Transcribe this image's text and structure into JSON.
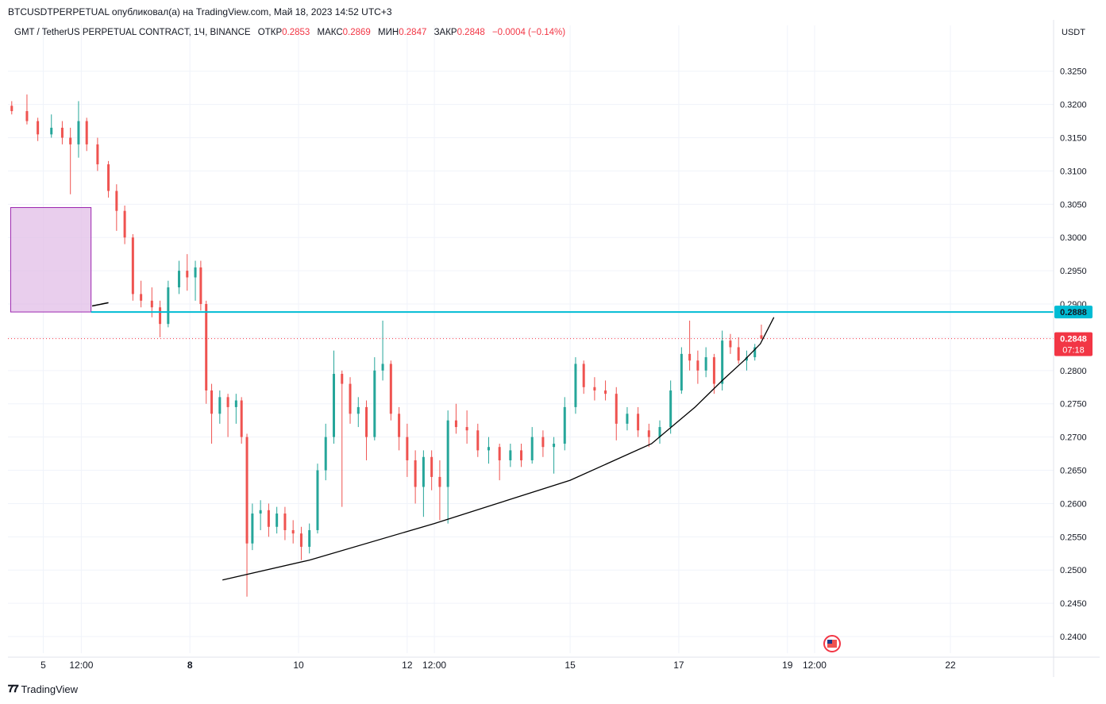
{
  "caption": "BTCUSDTPERPETUAL опубликовал(а) на TradingView.com, Май 18, 2023 14:52 UTC+3",
  "legend": {
    "symbol": "GMT / TetherUS PERPETUAL CONTRACT, 1Ч, BINANCE",
    "open_label": "ОТКР",
    "open": "0.2853",
    "high_label": "МАКС",
    "high": "0.2869",
    "low_label": "МИН",
    "low": "0.2847",
    "close_label": "ЗАКР",
    "close": "0.2848",
    "change": "−0.0004 (−0.14%)"
  },
  "footer": {
    "brand": "TradingView"
  },
  "colors": {
    "up": "#26a69a",
    "down": "#ef5350",
    "resistance": "#00bcd4",
    "zone_fill": "#e1bee7",
    "zone_border": "#9c27b0",
    "price_tag": "#f23645"
  },
  "chart_data": {
    "type": "candlestick",
    "currency": "USDT",
    "ylim": [
      0.2375,
      0.3295
    ],
    "y_ticks": [
      "0.3250",
      "0.3200",
      "0.3150",
      "0.3100",
      "0.3050",
      "0.3000",
      "0.2950",
      "0.2900",
      "0.2850",
      "0.2800",
      "0.2750",
      "0.2700",
      "0.2650",
      "0.2600",
      "0.2550",
      "0.2500",
      "0.2450",
      "0.2400"
    ],
    "x_ticks": [
      {
        "label": "5",
        "t": 0.3
      },
      {
        "label": "12:00",
        "t": 1.0
      },
      {
        "label": "8",
        "t": 3.0
      },
      {
        "label": "10",
        "t": 5.0
      },
      {
        "label": "12",
        "t": 7.0
      },
      {
        "label": "12:00",
        "t": 7.5
      },
      {
        "label": "15",
        "t": 10.0
      },
      {
        "label": "17",
        "t": 12.0
      },
      {
        "label": "19",
        "t": 14.0
      },
      {
        "label": "12:00",
        "t": 14.5
      },
      {
        "label": "22",
        "t": 17.0
      }
    ],
    "x_bold": [
      "8"
    ],
    "grid": true,
    "resistance_level": "0.2888",
    "current_price": "0.2848",
    "countdown": "07:18",
    "supply_zone": {
      "t_start": -0.3,
      "t_end": 1.18,
      "low": 0.2888,
      "high": 0.3045
    },
    "candles": [
      {
        "t": -0.28,
        "o": 0.3198,
        "h": 0.3205,
        "l": 0.3185,
        "c": 0.319
      },
      {
        "t": 0.0,
        "o": 0.319,
        "h": 0.3215,
        "l": 0.317,
        "c": 0.3175
      },
      {
        "t": 0.2,
        "o": 0.3175,
        "h": 0.318,
        "l": 0.3145,
        "c": 0.3155
      },
      {
        "t": 0.45,
        "o": 0.3155,
        "h": 0.3185,
        "l": 0.315,
        "c": 0.3165
      },
      {
        "t": 0.65,
        "o": 0.3165,
        "h": 0.3175,
        "l": 0.314,
        "c": 0.315
      },
      {
        "t": 0.8,
        "o": 0.315,
        "h": 0.3165,
        "l": 0.3065,
        "c": 0.314
      },
      {
        "t": 0.95,
        "o": 0.314,
        "h": 0.3205,
        "l": 0.312,
        "c": 0.3175
      },
      {
        "t": 1.1,
        "o": 0.3175,
        "h": 0.318,
        "l": 0.313,
        "c": 0.314
      },
      {
        "t": 1.3,
        "o": 0.314,
        "h": 0.315,
        "l": 0.31,
        "c": 0.311
      },
      {
        "t": 1.5,
        "o": 0.311,
        "h": 0.3115,
        "l": 0.306,
        "c": 0.307
      },
      {
        "t": 1.65,
        "o": 0.307,
        "h": 0.308,
        "l": 0.301,
        "c": 0.304
      },
      {
        "t": 1.8,
        "o": 0.304,
        "h": 0.3048,
        "l": 0.299,
        "c": 0.3
      },
      {
        "t": 1.95,
        "o": 0.3,
        "h": 0.3005,
        "l": 0.2905,
        "c": 0.2915
      },
      {
        "t": 2.1,
        "o": 0.2915,
        "h": 0.2935,
        "l": 0.2895,
        "c": 0.2905
      },
      {
        "t": 2.3,
        "o": 0.2905,
        "h": 0.2925,
        "l": 0.288,
        "c": 0.2895
      },
      {
        "t": 2.45,
        "o": 0.2895,
        "h": 0.2905,
        "l": 0.285,
        "c": 0.287
      },
      {
        "t": 2.6,
        "o": 0.287,
        "h": 0.2935,
        "l": 0.2865,
        "c": 0.2925
      },
      {
        "t": 2.8,
        "o": 0.2925,
        "h": 0.2965,
        "l": 0.2915,
        "c": 0.295
      },
      {
        "t": 2.95,
        "o": 0.295,
        "h": 0.2975,
        "l": 0.292,
        "c": 0.294
      },
      {
        "t": 3.1,
        "o": 0.294,
        "h": 0.2965,
        "l": 0.2905,
        "c": 0.2955
      },
      {
        "t": 3.2,
        "o": 0.2955,
        "h": 0.2965,
        "l": 0.289,
        "c": 0.29
      },
      {
        "t": 3.3,
        "o": 0.29,
        "h": 0.2905,
        "l": 0.275,
        "c": 0.277
      },
      {
        "t": 3.4,
        "o": 0.277,
        "h": 0.278,
        "l": 0.269,
        "c": 0.2735
      },
      {
        "t": 3.55,
        "o": 0.2735,
        "h": 0.277,
        "l": 0.272,
        "c": 0.276
      },
      {
        "t": 3.7,
        "o": 0.276,
        "h": 0.2765,
        "l": 0.27,
        "c": 0.2745
      },
      {
        "t": 3.85,
        "o": 0.2745,
        "h": 0.2765,
        "l": 0.272,
        "c": 0.2755
      },
      {
        "t": 3.95,
        "o": 0.2755,
        "h": 0.276,
        "l": 0.269,
        "c": 0.27
      },
      {
        "t": 4.05,
        "o": 0.27,
        "h": 0.2705,
        "l": 0.246,
        "c": 0.254
      },
      {
        "t": 4.15,
        "o": 0.254,
        "h": 0.26,
        "l": 0.253,
        "c": 0.2585
      },
      {
        "t": 4.3,
        "o": 0.2585,
        "h": 0.2605,
        "l": 0.256,
        "c": 0.259
      },
      {
        "t": 4.45,
        "o": 0.259,
        "h": 0.26,
        "l": 0.255,
        "c": 0.2565
      },
      {
        "t": 4.6,
        "o": 0.2565,
        "h": 0.2595,
        "l": 0.2555,
        "c": 0.2585
      },
      {
        "t": 4.75,
        "o": 0.2585,
        "h": 0.2595,
        "l": 0.2545,
        "c": 0.256
      },
      {
        "t": 4.9,
        "o": 0.256,
        "h": 0.2575,
        "l": 0.254,
        "c": 0.2555
      },
      {
        "t": 5.05,
        "o": 0.2555,
        "h": 0.2565,
        "l": 0.2515,
        "c": 0.2535
      },
      {
        "t": 5.2,
        "o": 0.2535,
        "h": 0.257,
        "l": 0.2525,
        "c": 0.256
      },
      {
        "t": 5.35,
        "o": 0.256,
        "h": 0.266,
        "l": 0.2555,
        "c": 0.265
      },
      {
        "t": 5.5,
        "o": 0.265,
        "h": 0.272,
        "l": 0.2635,
        "c": 0.27
      },
      {
        "t": 5.65,
        "o": 0.27,
        "h": 0.283,
        "l": 0.269,
        "c": 0.2795
      },
      {
        "t": 5.8,
        "o": 0.2795,
        "h": 0.28,
        "l": 0.2595,
        "c": 0.278
      },
      {
        "t": 5.95,
        "o": 0.278,
        "h": 0.279,
        "l": 0.272,
        "c": 0.2735
      },
      {
        "t": 6.1,
        "o": 0.2735,
        "h": 0.276,
        "l": 0.2715,
        "c": 0.2745
      },
      {
        "t": 6.25,
        "o": 0.2745,
        "h": 0.2755,
        "l": 0.2665,
        "c": 0.27
      },
      {
        "t": 6.4,
        "o": 0.27,
        "h": 0.282,
        "l": 0.2695,
        "c": 0.28
      },
      {
        "t": 6.55,
        "o": 0.28,
        "h": 0.2875,
        "l": 0.2785,
        "c": 0.281
      },
      {
        "t": 6.7,
        "o": 0.281,
        "h": 0.2815,
        "l": 0.2725,
        "c": 0.2735
      },
      {
        "t": 6.85,
        "o": 0.2735,
        "h": 0.2745,
        "l": 0.268,
        "c": 0.27
      },
      {
        "t": 7.0,
        "o": 0.27,
        "h": 0.272,
        "l": 0.264,
        "c": 0.2665
      },
      {
        "t": 7.15,
        "o": 0.2665,
        "h": 0.268,
        "l": 0.26,
        "c": 0.2625
      },
      {
        "t": 7.3,
        "o": 0.2625,
        "h": 0.268,
        "l": 0.258,
        "c": 0.267
      },
      {
        "t": 7.45,
        "o": 0.267,
        "h": 0.268,
        "l": 0.262,
        "c": 0.264
      },
      {
        "t": 7.6,
        "o": 0.264,
        "h": 0.2665,
        "l": 0.2575,
        "c": 0.2625
      },
      {
        "t": 7.75,
        "o": 0.2625,
        "h": 0.274,
        "l": 0.257,
        "c": 0.2725
      },
      {
        "t": 7.9,
        "o": 0.2725,
        "h": 0.275,
        "l": 0.2705,
        "c": 0.2715
      },
      {
        "t": 8.1,
        "o": 0.2715,
        "h": 0.274,
        "l": 0.269,
        "c": 0.271
      },
      {
        "t": 8.3,
        "o": 0.271,
        "h": 0.272,
        "l": 0.267,
        "c": 0.268
      },
      {
        "t": 8.5,
        "o": 0.268,
        "h": 0.27,
        "l": 0.266,
        "c": 0.2685
      },
      {
        "t": 8.7,
        "o": 0.2685,
        "h": 0.269,
        "l": 0.2635,
        "c": 0.2665
      },
      {
        "t": 8.9,
        "o": 0.2665,
        "h": 0.269,
        "l": 0.2655,
        "c": 0.268
      },
      {
        "t": 9.1,
        "o": 0.268,
        "h": 0.269,
        "l": 0.2655,
        "c": 0.2665
      },
      {
        "t": 9.3,
        "o": 0.2665,
        "h": 0.2715,
        "l": 0.266,
        "c": 0.27
      },
      {
        "t": 9.5,
        "o": 0.27,
        "h": 0.271,
        "l": 0.267,
        "c": 0.2685
      },
      {
        "t": 9.7,
        "o": 0.2685,
        "h": 0.27,
        "l": 0.2645,
        "c": 0.269
      },
      {
        "t": 9.9,
        "o": 0.269,
        "h": 0.276,
        "l": 0.268,
        "c": 0.2745
      },
      {
        "t": 10.1,
        "o": 0.2745,
        "h": 0.282,
        "l": 0.2735,
        "c": 0.281
      },
      {
        "t": 10.25,
        "o": 0.281,
        "h": 0.2815,
        "l": 0.2765,
        "c": 0.2775
      },
      {
        "t": 10.45,
        "o": 0.2775,
        "h": 0.279,
        "l": 0.2755,
        "c": 0.277
      },
      {
        "t": 10.65,
        "o": 0.277,
        "h": 0.2785,
        "l": 0.2755,
        "c": 0.2765
      },
      {
        "t": 10.85,
        "o": 0.2765,
        "h": 0.2775,
        "l": 0.2695,
        "c": 0.272
      },
      {
        "t": 11.05,
        "o": 0.272,
        "h": 0.2745,
        "l": 0.271,
        "c": 0.2735
      },
      {
        "t": 11.25,
        "o": 0.2735,
        "h": 0.2745,
        "l": 0.27,
        "c": 0.271
      },
      {
        "t": 11.45,
        "o": 0.271,
        "h": 0.272,
        "l": 0.2685,
        "c": 0.27
      },
      {
        "t": 11.65,
        "o": 0.27,
        "h": 0.2725,
        "l": 0.269,
        "c": 0.2715
      },
      {
        "t": 11.85,
        "o": 0.2715,
        "h": 0.2785,
        "l": 0.2705,
        "c": 0.277
      },
      {
        "t": 12.05,
        "o": 0.277,
        "h": 0.2835,
        "l": 0.2765,
        "c": 0.2825
      },
      {
        "t": 12.2,
        "o": 0.2825,
        "h": 0.2875,
        "l": 0.28,
        "c": 0.2815
      },
      {
        "t": 12.35,
        "o": 0.2815,
        "h": 0.283,
        "l": 0.278,
        "c": 0.28
      },
      {
        "t": 12.5,
        "o": 0.28,
        "h": 0.2835,
        "l": 0.279,
        "c": 0.282
      },
      {
        "t": 12.65,
        "o": 0.282,
        "h": 0.2825,
        "l": 0.2765,
        "c": 0.278
      },
      {
        "t": 12.8,
        "o": 0.278,
        "h": 0.286,
        "l": 0.277,
        "c": 0.2845
      },
      {
        "t": 12.95,
        "o": 0.2845,
        "h": 0.2855,
        "l": 0.2825,
        "c": 0.2835
      },
      {
        "t": 13.1,
        "o": 0.2835,
        "h": 0.285,
        "l": 0.281,
        "c": 0.2815
      },
      {
        "t": 13.25,
        "o": 0.2815,
        "h": 0.283,
        "l": 0.28,
        "c": 0.282
      },
      {
        "t": 13.4,
        "o": 0.282,
        "h": 0.284,
        "l": 0.2815,
        "c": 0.2835
      },
      {
        "t": 13.52,
        "o": 0.2853,
        "h": 0.2869,
        "l": 0.2847,
        "c": 0.2848
      }
    ],
    "curve": [
      {
        "t": 3.6,
        "y": 0.2485
      },
      {
        "t": 5.2,
        "y": 0.2515
      },
      {
        "t": 7.5,
        "y": 0.257
      },
      {
        "t": 10.0,
        "y": 0.2635
      },
      {
        "t": 11.5,
        "y": 0.269
      },
      {
        "t": 12.3,
        "y": 0.2745
      },
      {
        "t": 12.8,
        "y": 0.2785
      },
      {
        "t": 13.2,
        "y": 0.2815
      },
      {
        "t": 13.5,
        "y": 0.284
      },
      {
        "t": 13.75,
        "y": 0.288
      }
    ],
    "small_line": [
      {
        "t": 1.2,
        "y": 0.2897
      },
      {
        "t": 1.5,
        "y": 0.2902
      }
    ]
  }
}
